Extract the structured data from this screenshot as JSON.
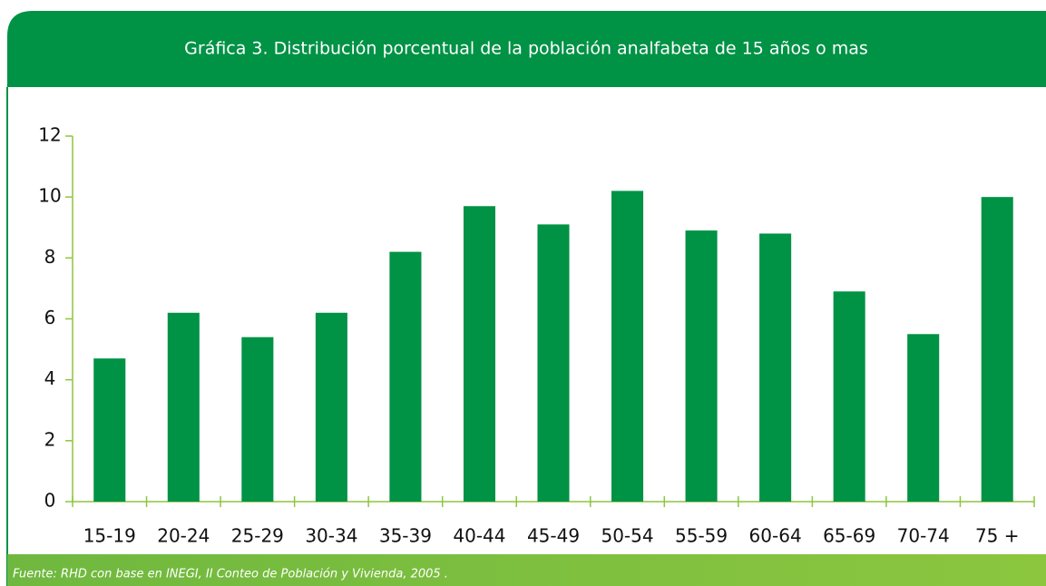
{
  "chart_data": {
    "type": "bar",
    "title": "Gráfica 3.  Distribución porcentual de la población analfabeta de 15 años o mas",
    "source": "Fuente: RHD con base en  INEGI, II Conteo de Población y Vivienda, 2005 .",
    "categories": [
      "15-19",
      "20-24",
      "25-29",
      "30-34",
      "35-39",
      "40-44",
      "45-49",
      "50-54",
      "55-59",
      "60-64",
      "65-69",
      "70-74",
      "75 +"
    ],
    "values": [
      4.7,
      6.2,
      5.4,
      6.2,
      8.2,
      9.7,
      9.1,
      10.2,
      8.9,
      8.8,
      6.9,
      5.5,
      10.0
    ],
    "color": "#009245",
    "ylim": [
      0,
      12
    ],
    "yticks": [
      0,
      2,
      4,
      6,
      8,
      10,
      12
    ],
    "grid": false
  }
}
